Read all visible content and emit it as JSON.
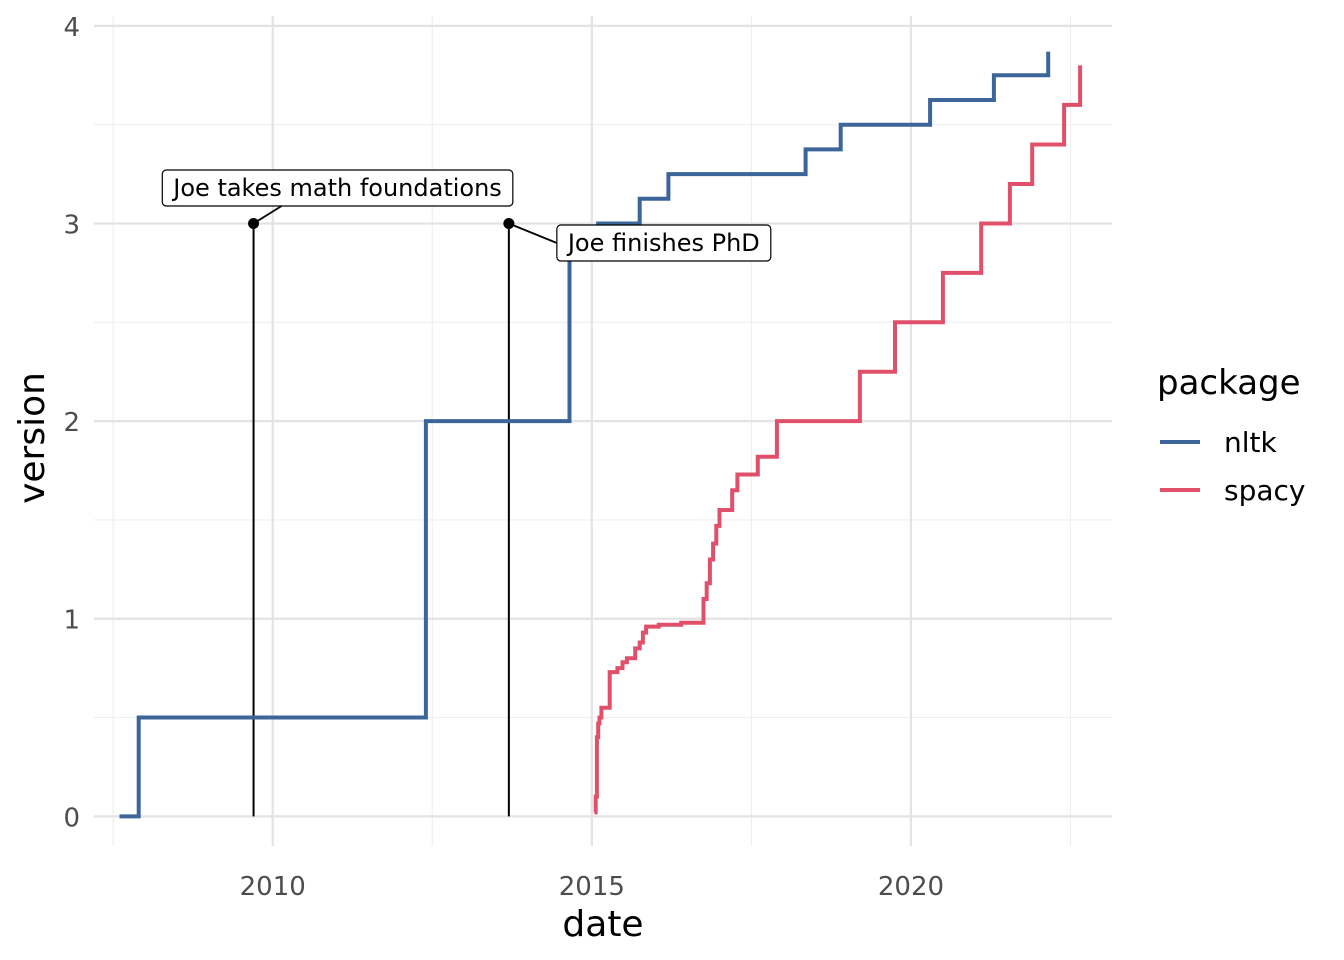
{
  "chart_data": {
    "type": "line",
    "step": true,
    "xlabel": "date",
    "ylabel": "version",
    "legend_title": "package",
    "legend_position": "right",
    "grid": true,
    "xlim": [
      2007.2,
      2023.15
    ],
    "ylim": [
      -0.15,
      4.05
    ],
    "x_ticks": [
      2010,
      2015,
      2020
    ],
    "x_tick_labels": [
      "2010",
      "2015",
      "2020"
    ],
    "y_ticks": [
      0,
      1,
      2,
      3,
      4
    ],
    "y_tick_labels": [
      "0",
      "1",
      "2",
      "3",
      "4"
    ],
    "series": [
      {
        "name": "nltk",
        "color": "#3c6599",
        "points": [
          [
            2007.6,
            0
          ],
          [
            2007.9,
            0
          ],
          [
            2007.9,
            0.5
          ],
          [
            2012.4,
            0.5
          ],
          [
            2012.4,
            2.0
          ],
          [
            2014.65,
            2.0
          ],
          [
            2014.65,
            2.9
          ],
          [
            2015.1,
            2.9
          ],
          [
            2015.1,
            3.0
          ],
          [
            2015.75,
            3.0
          ],
          [
            2015.75,
            3.125
          ],
          [
            2016.2,
            3.125
          ],
          [
            2016.2,
            3.25
          ],
          [
            2018.35,
            3.25
          ],
          [
            2018.35,
            3.375
          ],
          [
            2018.9,
            3.375
          ],
          [
            2018.9,
            3.5
          ],
          [
            2020.3,
            3.5
          ],
          [
            2020.3,
            3.625
          ],
          [
            2021.3,
            3.625
          ],
          [
            2021.3,
            3.75
          ],
          [
            2022.15,
            3.75
          ],
          [
            2022.15,
            3.87
          ]
        ]
      },
      {
        "name": "spacy",
        "color": "#e0506a",
        "points": [
          [
            2015.04,
            0.02
          ],
          [
            2015.06,
            0.02
          ],
          [
            2015.06,
            0.1
          ],
          [
            2015.08,
            0.1
          ],
          [
            2015.08,
            0.4
          ],
          [
            2015.1,
            0.4
          ],
          [
            2015.1,
            0.47
          ],
          [
            2015.12,
            0.47
          ],
          [
            2015.12,
            0.5
          ],
          [
            2015.15,
            0.5
          ],
          [
            2015.15,
            0.55
          ],
          [
            2015.28,
            0.55
          ],
          [
            2015.28,
            0.73
          ],
          [
            2015.4,
            0.73
          ],
          [
            2015.4,
            0.75
          ],
          [
            2015.48,
            0.75
          ],
          [
            2015.48,
            0.78
          ],
          [
            2015.55,
            0.78
          ],
          [
            2015.55,
            0.8
          ],
          [
            2015.68,
            0.8
          ],
          [
            2015.68,
            0.85
          ],
          [
            2015.75,
            0.85
          ],
          [
            2015.75,
            0.88
          ],
          [
            2015.8,
            0.88
          ],
          [
            2015.8,
            0.93
          ],
          [
            2015.85,
            0.93
          ],
          [
            2015.85,
            0.96
          ],
          [
            2016.05,
            0.96
          ],
          [
            2016.05,
            0.97
          ],
          [
            2016.4,
            0.97
          ],
          [
            2016.4,
            0.98
          ],
          [
            2016.75,
            0.98
          ],
          [
            2016.75,
            1.1
          ],
          [
            2016.8,
            1.1
          ],
          [
            2016.8,
            1.18
          ],
          [
            2016.85,
            1.18
          ],
          [
            2016.85,
            1.3
          ],
          [
            2016.9,
            1.3
          ],
          [
            2016.9,
            1.38
          ],
          [
            2016.95,
            1.38
          ],
          [
            2016.95,
            1.47
          ],
          [
            2017.0,
            1.47
          ],
          [
            2017.0,
            1.55
          ],
          [
            2017.2,
            1.55
          ],
          [
            2017.2,
            1.65
          ],
          [
            2017.28,
            1.65
          ],
          [
            2017.28,
            1.73
          ],
          [
            2017.6,
            1.73
          ],
          [
            2017.6,
            1.82
          ],
          [
            2017.9,
            1.82
          ],
          [
            2017.9,
            2.0
          ],
          [
            2019.2,
            2.0
          ],
          [
            2019.2,
            2.25
          ],
          [
            2019.75,
            2.25
          ],
          [
            2019.75,
            2.5
          ],
          [
            2020.5,
            2.5
          ],
          [
            2020.5,
            2.75
          ],
          [
            2021.1,
            2.75
          ],
          [
            2021.1,
            3.0
          ],
          [
            2021.55,
            3.0
          ],
          [
            2021.55,
            3.2
          ],
          [
            2021.9,
            3.2
          ],
          [
            2021.9,
            3.4
          ],
          [
            2022.4,
            3.4
          ],
          [
            2022.4,
            3.6
          ],
          [
            2022.65,
            3.6
          ],
          [
            2022.65,
            3.8
          ]
        ]
      }
    ],
    "annotations": [
      {
        "label": "Joe takes math foundations",
        "x": 2009.7,
        "y": 3
      },
      {
        "label": "Joe finishes PhD",
        "x": 2013.7,
        "y": 3
      }
    ]
  }
}
